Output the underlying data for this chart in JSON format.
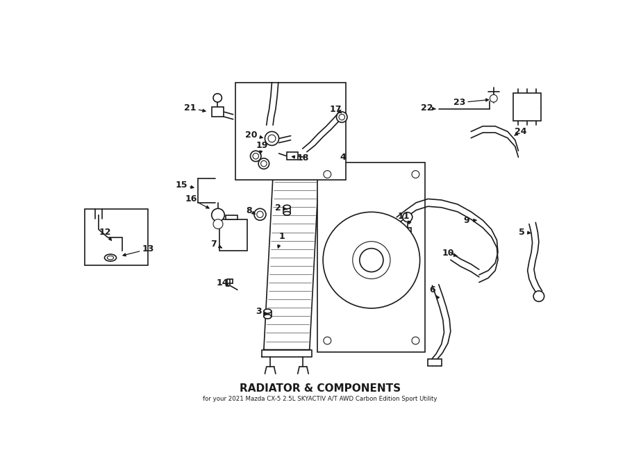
{
  "title": "RADIATOR & COMPONENTS",
  "subtitle": "for your 2021 Mazda CX-5 2.5L SKYACTIV A/T AWD Carbon Edition Sport Utility",
  "bg_color": "#ffffff",
  "line_color": "#1a1a1a",
  "text_color": "#1a1a1a",
  "fig_width": 9.0,
  "fig_height": 6.61,
  "dpi": 100
}
